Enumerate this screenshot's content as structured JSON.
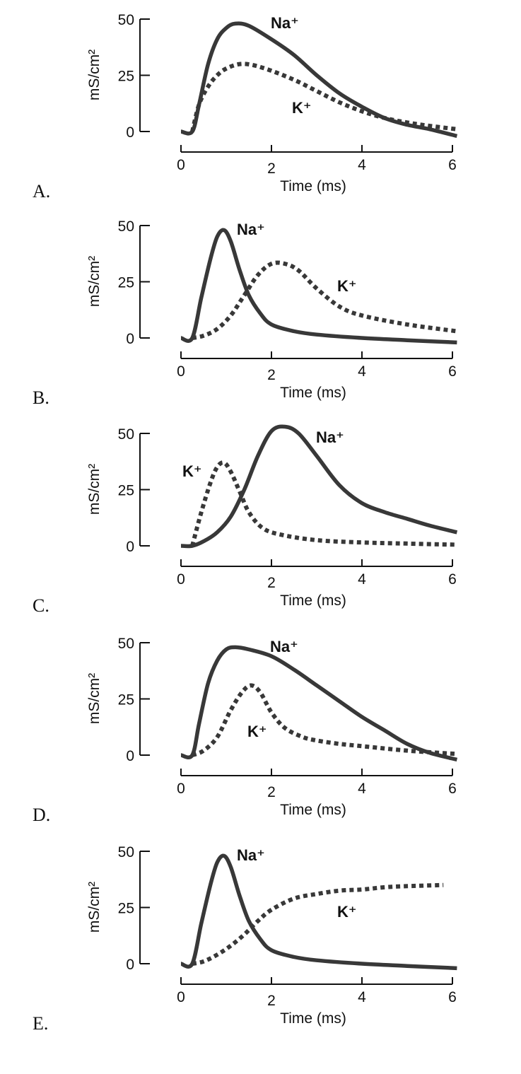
{
  "chart_data": [
    {
      "type": "line",
      "panel_label": "A.",
      "xlabel": "Time (ms)",
      "ylabel": "mS/cm²",
      "xlim": [
        0,
        6
      ],
      "ylim": [
        0,
        50
      ],
      "xticks": [
        "0",
        "2",
        "4",
        "6"
      ],
      "yticks": [
        "0",
        "25",
        "50"
      ],
      "series": [
        {
          "name": "Na⁺",
          "style": "solid",
          "x": [
            0,
            0.25,
            0.4,
            0.6,
            0.8,
            1.0,
            1.2,
            1.5,
            2,
            2.5,
            3,
            3.5,
            4,
            4.5,
            5,
            5.5,
            6.1
          ],
          "y": [
            0,
            0,
            12,
            30,
            41,
            46,
            48,
            47,
            41,
            34,
            25,
            17,
            11,
            6,
            3,
            1,
            -2
          ]
        },
        {
          "name": "K⁺",
          "style": "dotted",
          "x": [
            0.25,
            0.4,
            0.6,
            0.8,
            1.0,
            1.3,
            1.6,
            2,
            2.5,
            3,
            3.5,
            4,
            4.5,
            5,
            5.5,
            6.1
          ],
          "y": [
            0,
            12,
            20,
            25,
            28,
            30,
            29.5,
            27,
            23,
            18,
            13,
            9,
            6,
            4,
            2.5,
            1
          ]
        }
      ]
    },
    {
      "type": "line",
      "panel_label": "B.",
      "xlabel": "Time (ms)",
      "ylabel": "mS/cm²",
      "xlim": [
        0,
        6
      ],
      "ylim": [
        0,
        50
      ],
      "xticks": [
        "0",
        "2",
        "4",
        "6"
      ],
      "yticks": [
        "0",
        "25",
        "50"
      ],
      "series": [
        {
          "name": "Na⁺",
          "style": "solid",
          "x": [
            0,
            0.25,
            0.45,
            0.65,
            0.8,
            0.95,
            1.1,
            1.3,
            1.5,
            1.75,
            2,
            2.5,
            3,
            4,
            5,
            6.1
          ],
          "y": [
            0,
            0,
            18,
            35,
            45,
            48,
            43,
            30,
            19,
            11,
            6,
            3,
            1.5,
            0,
            -1,
            -2
          ]
        },
        {
          "name": "K⁺",
          "style": "dotted",
          "x": [
            0.25,
            0.5,
            0.8,
            1.1,
            1.4,
            1.7,
            2,
            2.3,
            2.6,
            3,
            3.5,
            4,
            5,
            6.1
          ],
          "y": [
            0,
            1,
            4,
            10,
            19,
            28,
            33,
            33,
            30,
            22,
            14,
            10,
            6,
            3
          ]
        }
      ]
    },
    {
      "type": "line",
      "panel_label": "C.",
      "xlabel": "Time (ms)",
      "ylabel": "mS/cm²",
      "xlim": [
        0,
        6
      ],
      "ylim": [
        0,
        50
      ],
      "xticks": [
        "0",
        "2",
        "4",
        "6"
      ],
      "yticks": [
        "0",
        "25",
        "50"
      ],
      "series": [
        {
          "name": "Na⁺",
          "style": "solid",
          "x": [
            0,
            0.25,
            0.5,
            0.8,
            1.1,
            1.4,
            1.7,
            2,
            2.3,
            2.6,
            3,
            3.5,
            4,
            4.5,
            5,
            5.5,
            6.1
          ],
          "y": [
            0,
            0,
            2,
            6,
            13,
            25,
            40,
            51,
            53,
            50,
            40,
            27,
            19,
            15,
            12,
            9,
            6
          ]
        },
        {
          "name": "K⁺",
          "style": "dotted",
          "x": [
            0.25,
            0.45,
            0.65,
            0.8,
            0.95,
            1.1,
            1.3,
            1.5,
            1.8,
            2.2,
            3,
            4,
            5,
            6.1
          ],
          "y": [
            0,
            15,
            28,
            35,
            37,
            33,
            24,
            15,
            8,
            5,
            2.5,
            1.5,
            1,
            0.5
          ]
        }
      ]
    },
    {
      "type": "line",
      "panel_label": "D.",
      "xlabel": "Time (ms)",
      "ylabel": "mS/cm²",
      "xlim": [
        0,
        6
      ],
      "ylim": [
        0,
        50
      ],
      "xticks": [
        "0",
        "2",
        "4",
        "6"
      ],
      "yticks": [
        "0",
        "25",
        "50"
      ],
      "series": [
        {
          "name": "Na⁺",
          "style": "solid",
          "x": [
            0,
            0.25,
            0.4,
            0.6,
            0.8,
            1.0,
            1.2,
            1.5,
            2,
            2.5,
            3,
            3.5,
            4,
            4.5,
            5,
            5.5,
            6.1
          ],
          "y": [
            0,
            0,
            14,
            32,
            42,
            47,
            48,
            47,
            44,
            38,
            31,
            24,
            17,
            11,
            5,
            1,
            -2
          ]
        },
        {
          "name": "K⁺",
          "style": "dotted",
          "x": [
            0.25,
            0.5,
            0.8,
            1.1,
            1.35,
            1.55,
            1.75,
            2,
            2.3,
            2.7,
            3,
            3.5,
            4,
            5,
            6.1
          ],
          "y": [
            0,
            2,
            8,
            20,
            28,
            31,
            28,
            19,
            12,
            8,
            6.5,
            5,
            4,
            2,
            0.5
          ]
        }
      ]
    },
    {
      "type": "line",
      "panel_label": "E.",
      "xlabel": "Time (ms)",
      "ylabel": "mS/cm²",
      "xlim": [
        0,
        6
      ],
      "ylim": [
        0,
        50
      ],
      "xticks": [
        "0",
        "2",
        "4",
        "6"
      ],
      "yticks": [
        "0",
        "25",
        "50"
      ],
      "series": [
        {
          "name": "Na⁺",
          "style": "solid",
          "x": [
            0,
            0.25,
            0.45,
            0.65,
            0.8,
            0.95,
            1.1,
            1.3,
            1.5,
            1.75,
            2,
            2.5,
            3,
            4,
            5,
            6.1
          ],
          "y": [
            0,
            0,
            18,
            35,
            45,
            48,
            43,
            30,
            19,
            11,
            6,
            3,
            1.5,
            0,
            -1,
            -2
          ]
        },
        {
          "name": "K⁺",
          "style": "dotted",
          "x": [
            0.25,
            0.5,
            0.8,
            1.1,
            1.4,
            1.7,
            2,
            2.5,
            3,
            3.5,
            4,
            4.5,
            5,
            5.8
          ],
          "y": [
            0,
            1,
            4,
            8,
            13,
            19,
            24,
            29,
            31,
            32.5,
            33,
            34,
            34.5,
            35
          ]
        }
      ]
    }
  ],
  "colors": {
    "line": "#383838",
    "axis": "#111111"
  }
}
